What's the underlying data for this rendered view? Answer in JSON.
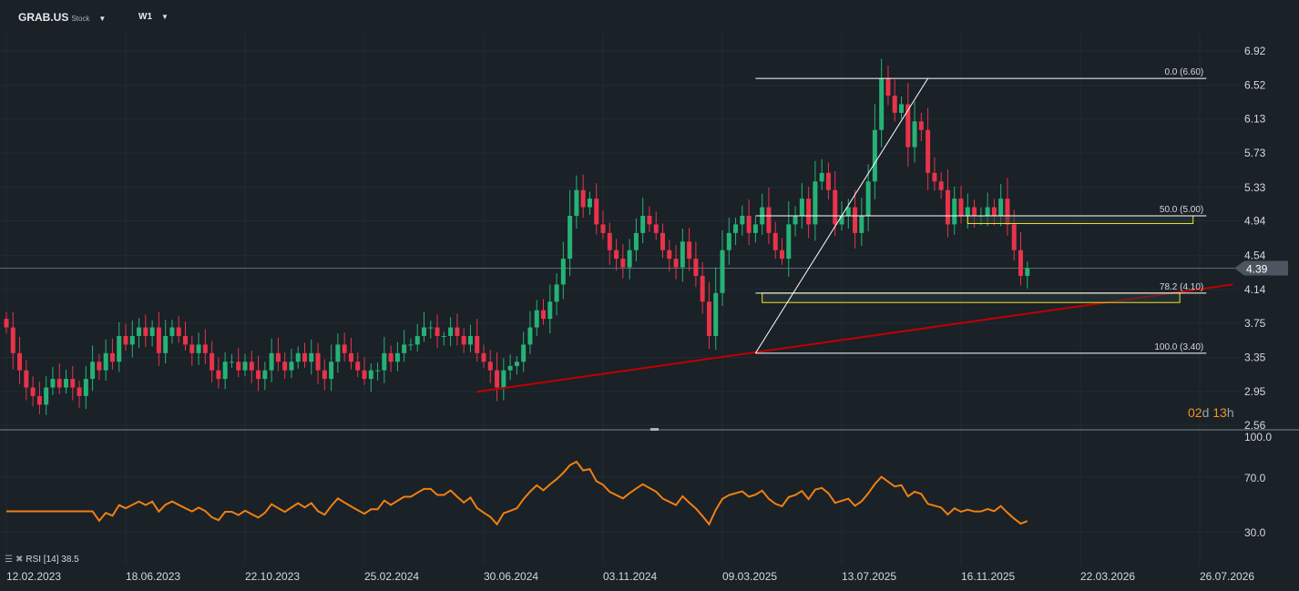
{
  "header": {
    "symbol": "GRAB.US",
    "type": "Stock",
    "timeframe": "W1"
  },
  "timer": {
    "days": "02",
    "d": "d",
    "hours": "13",
    "h": "h"
  },
  "rsi": {
    "label": "RSI [14]",
    "value": "38.5",
    "axis": [
      "100.0",
      "70.0",
      "30.0"
    ]
  },
  "colors": {
    "up": "#26b276",
    "down": "#e8334a",
    "bg": "#1a2127",
    "rsi": "#f07f13",
    "trend": "#c00000",
    "fib": "#ffffff",
    "zone": "#f2e32b"
  },
  "chart_data": {
    "type": "candlestick",
    "ylim": [
      2.56,
      6.92
    ],
    "price_ticks": [
      "6.92",
      "6.52",
      "6.13",
      "5.73",
      "5.33",
      "4.94",
      "4.54",
      "4.14",
      "3.75",
      "3.35",
      "2.95",
      "2.56"
    ],
    "current_price": "4.39",
    "date_labels": [
      "12.02.2023",
      "18.06.2023",
      "22.10.2023",
      "25.02.2024",
      "30.06.2024",
      "03.11.2024",
      "09.03.2025",
      "13.07.2025",
      "16.11.2025",
      "22.03.2026",
      "26.07.2026"
    ],
    "weeks_per_label": 18,
    "closes": [
      3.7,
      3.4,
      3.2,
      3.0,
      2.9,
      2.8,
      3.0,
      3.1,
      3.0,
      3.1,
      3.0,
      2.9,
      3.1,
      3.3,
      3.2,
      3.4,
      3.3,
      3.6,
      3.5,
      3.6,
      3.7,
      3.6,
      3.7,
      3.4,
      3.6,
      3.7,
      3.6,
      3.5,
      3.4,
      3.5,
      3.4,
      3.2,
      3.1,
      3.3,
      3.3,
      3.2,
      3.3,
      3.2,
      3.1,
      3.2,
      3.4,
      3.3,
      3.2,
      3.3,
      3.4,
      3.3,
      3.4,
      3.2,
      3.1,
      3.3,
      3.5,
      3.4,
      3.3,
      3.2,
      3.1,
      3.2,
      3.2,
      3.4,
      3.3,
      3.4,
      3.5,
      3.5,
      3.6,
      3.7,
      3.7,
      3.6,
      3.6,
      3.7,
      3.6,
      3.5,
      3.6,
      3.4,
      3.3,
      3.2,
      3.0,
      3.2,
      3.25,
      3.3,
      3.5,
      3.7,
      3.9,
      3.8,
      4.0,
      4.2,
      4.5,
      5.0,
      5.3,
      5.1,
      5.2,
      4.9,
      4.8,
      4.6,
      4.5,
      4.4,
      4.6,
      4.8,
      5.0,
      4.9,
      4.8,
      4.6,
      4.5,
      4.4,
      4.7,
      4.5,
      4.3,
      4.0,
      3.6,
      4.1,
      4.6,
      4.8,
      4.9,
      5.0,
      4.8,
      4.9,
      5.1,
      4.8,
      4.6,
      4.5,
      4.9,
      5.0,
      5.2,
      4.9,
      5.4,
      5.5,
      5.3,
      4.9,
      5.0,
      5.1,
      4.8,
      5.0,
      5.4,
      6.0,
      6.6,
      6.4,
      6.2,
      6.3,
      5.8,
      6.1,
      6.0,
      5.5,
      5.4,
      5.3,
      4.9,
      5.2,
      5.0,
      5.1,
      5.0,
      5.0,
      5.1,
      5.0,
      5.2,
      4.9,
      4.6,
      4.3,
      4.39
    ],
    "trendline": {
      "from": {
        "week": 71,
        "price": 2.95
      },
      "to": {
        "week": 185,
        "price": 4.2
      }
    },
    "fibonacci": {
      "from": {
        "week": 113,
        "price": 3.4
      },
      "to": {
        "week": 139,
        "price": 6.6
      },
      "end_week": 181,
      "levels": [
        {
          "label": "0.0 (6.60)",
          "price": 6.6
        },
        {
          "label": "50.0 (5.00)",
          "price": 5.0
        },
        {
          "label": "78.2 (4.10)",
          "price": 4.1
        },
        {
          "label": "100.0 (3.40)",
          "price": 3.4
        }
      ]
    },
    "zones": [
      {
        "from_week": 145,
        "to_week": 179,
        "top": 5.0,
        "bottom": 4.91
      },
      {
        "from_week": 114,
        "to_week": 177,
        "top": 4.1,
        "bottom": 3.99
      }
    ]
  }
}
